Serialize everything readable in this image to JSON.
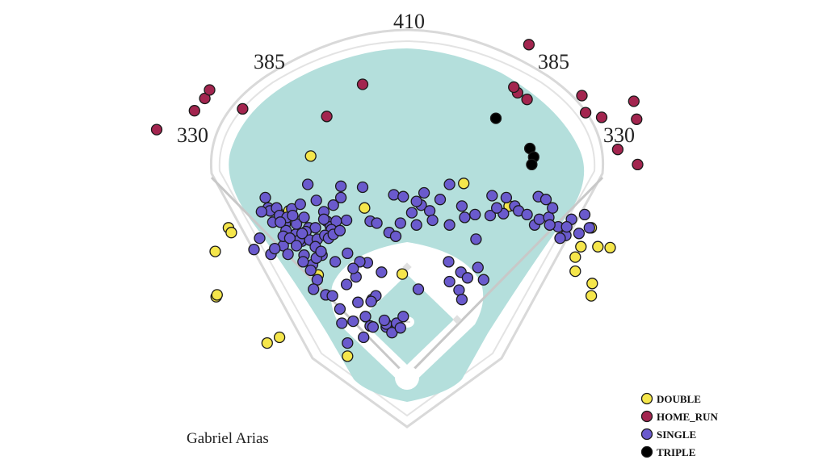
{
  "chart_data": {
    "type": "scatter",
    "title": "",
    "player": "Gabriel Arias",
    "field": {
      "distance_labels": [
        "330",
        "385",
        "410",
        "385",
        "330"
      ]
    },
    "legend_placement": "bottom-right",
    "series": [
      {
        "name": "DOUBLE",
        "color": "#f5e64b",
        "points": [
          [
            -203,
            132
          ],
          [
            -189,
            157
          ],
          [
            -186,
            152
          ],
          [
            -202,
            84
          ],
          [
            -201,
            86
          ],
          [
            -137,
            174
          ],
          [
            -125,
            175
          ],
          [
            -102,
            233
          ],
          [
            -45,
            178
          ],
          [
            -94,
            107
          ],
          [
            -135,
            41
          ],
          [
            -148,
            35
          ],
          [
            -63,
            21
          ],
          [
            -5,
            108
          ],
          [
            60,
            204
          ],
          [
            108,
            180
          ],
          [
            184,
            137
          ],
          [
            178,
            111
          ],
          [
            202,
            137
          ],
          [
            178,
            126
          ],
          [
            195,
            157
          ],
          [
            215,
            136
          ],
          [
            195,
            85
          ],
          [
            196,
            98
          ]
        ]
      },
      {
        "name": "HOME_RUN",
        "color": "#a3254f",
        "points": [
          [
            -265,
            261
          ],
          [
            -225,
            281
          ],
          [
            -214,
            294
          ],
          [
            -209,
            303
          ],
          [
            -174,
            283
          ],
          [
            -85,
            275
          ],
          [
            -47,
            309
          ],
          [
            117,
            300
          ],
          [
            127,
            293
          ],
          [
            113,
            306
          ],
          [
            129,
            351
          ],
          [
            185,
            297
          ],
          [
            189,
            279
          ],
          [
            206,
            274
          ],
          [
            240,
            291
          ],
          [
            223,
            240
          ],
          [
            244,
            224
          ],
          [
            243,
            272
          ]
        ]
      },
      {
        "name": "SINGLE",
        "color": "#6a5acd",
        "points": [
          [
            -150,
            189
          ],
          [
            -147,
            178
          ],
          [
            -145,
            175
          ],
          [
            -142,
            163
          ],
          [
            -138,
            178
          ],
          [
            -135,
            170
          ],
          [
            -129,
            161
          ],
          [
            -127,
            168
          ],
          [
            -122,
            177
          ],
          [
            -117,
            161
          ],
          [
            -111,
            143
          ],
          [
            -104,
            157
          ],
          [
            -97,
            157
          ],
          [
            -88,
            174
          ],
          [
            -85,
            164
          ],
          [
            -81,
            158
          ],
          [
            -78,
            181
          ],
          [
            -75,
            164
          ],
          [
            -70,
            189
          ],
          [
            -64,
            165
          ],
          [
            -63,
            130
          ],
          [
            -54,
            105
          ],
          [
            -42,
            120
          ],
          [
            -39,
            164
          ],
          [
            -32,
            162
          ],
          [
            -19,
            152
          ],
          [
            -12,
            148
          ],
          [
            -7,
            162
          ],
          [
            5,
            173
          ],
          [
            10,
            160
          ],
          [
            15,
            181
          ],
          [
            18,
            194
          ],
          [
            24,
            175
          ],
          [
            27,
            165
          ],
          [
            35,
            187
          ],
          [
            45,
            203
          ],
          [
            58,
            180
          ],
          [
            61,
            168
          ],
          [
            73,
            145
          ],
          [
            88,
            170
          ],
          [
            90,
            191
          ],
          [
            102,
            172
          ],
          [
            105,
            189
          ],
          [
            114,
            180
          ],
          [
            118,
            175
          ],
          [
            127,
            171
          ],
          [
            135,
            160
          ],
          [
            140,
            166
          ],
          [
            150,
            168
          ],
          [
            160,
            158
          ],
          [
            168,
            149
          ],
          [
            174,
            166
          ],
          [
            182,
            151
          ],
          [
            188,
            171
          ],
          [
            193,
            157
          ],
          [
            -105,
            203
          ],
          [
            -96,
            186
          ],
          [
            -88,
            166
          ],
          [
            -80,
            155
          ],
          [
            -70,
            201
          ],
          [
            -47,
            200
          ],
          [
            -14,
            192
          ],
          [
            -4,
            190
          ],
          [
            10,
            185
          ],
          [
            45,
            160
          ],
          [
            72,
            171
          ],
          [
            95,
            178
          ],
          [
            139,
            190
          ],
          [
            147,
            187
          ],
          [
            151,
            160
          ],
          [
            154,
            178
          ],
          [
            162,
            146
          ],
          [
            169,
            158
          ],
          [
            -144,
            129
          ],
          [
            -131,
            138
          ],
          [
            -126,
            129
          ],
          [
            -118,
            150
          ],
          [
            -113,
            182
          ],
          [
            -109,
            168
          ],
          [
            -107,
            153
          ],
          [
            -103,
            144
          ],
          [
            -100,
            118
          ],
          [
            -95,
            145
          ],
          [
            -90,
            128
          ],
          [
            -128,
            154
          ],
          [
            -121,
            170
          ],
          [
            -114,
            144
          ],
          [
            -109,
            128
          ],
          [
            -96,
            125
          ],
          [
            -134,
            163
          ],
          [
            -154,
            174
          ],
          [
            -140,
            135
          ],
          [
            -131,
            148
          ],
          [
            -124,
            146
          ],
          [
            -117,
            138
          ],
          [
            -111,
            151
          ],
          [
            -97,
            137
          ],
          [
            -91,
            132
          ],
          [
            -87,
            149
          ],
          [
            -83,
            146
          ],
          [
            -78,
            150
          ],
          [
            -71,
            154
          ],
          [
            -110,
            121
          ],
          [
            -102,
            112
          ],
          [
            -95,
            102
          ],
          [
            -99,
            92
          ],
          [
            -86,
            86
          ],
          [
            -79,
            85
          ],
          [
            -71,
            71
          ],
          [
            -57,
            58
          ],
          [
            -63,
            35
          ],
          [
            -46,
            41
          ],
          [
            -39,
            53
          ],
          [
            -22,
            52
          ],
          [
            -22,
            55
          ],
          [
            -16,
            46
          ],
          [
            -11,
            56
          ],
          [
            -7,
            51
          ],
          [
            -4,
            63
          ],
          [
            -24,
            59
          ],
          [
            -36,
            52
          ],
          [
            -44,
            63
          ],
          [
            -37,
            81
          ],
          [
            -33,
            85
          ],
          [
            -38,
            79
          ],
          [
            -52,
            78
          ],
          [
            -69,
            56
          ],
          [
            -64,
            97
          ],
          [
            -50,
            121
          ],
          [
            -27,
            110
          ],
          [
            -57,
            114
          ],
          [
            -76,
            121
          ],
          [
            12,
            92
          ],
          [
            45,
            100
          ],
          [
            57,
            110
          ],
          [
            44,
            121
          ],
          [
            64,
            104
          ],
          [
            55,
            91
          ],
          [
            58,
            81
          ],
          [
            81,
            102
          ],
          [
            75,
            115
          ],
          [
            -156,
            146
          ],
          [
            -162,
            134
          ]
        ]
      },
      {
        "name": "TRIPLE",
        "color": "#000000",
        "points": [
          [
            94,
            273
          ],
          [
            130,
            241
          ],
          [
            134,
            232
          ],
          [
            132,
            224
          ]
        ]
      }
    ]
  }
}
